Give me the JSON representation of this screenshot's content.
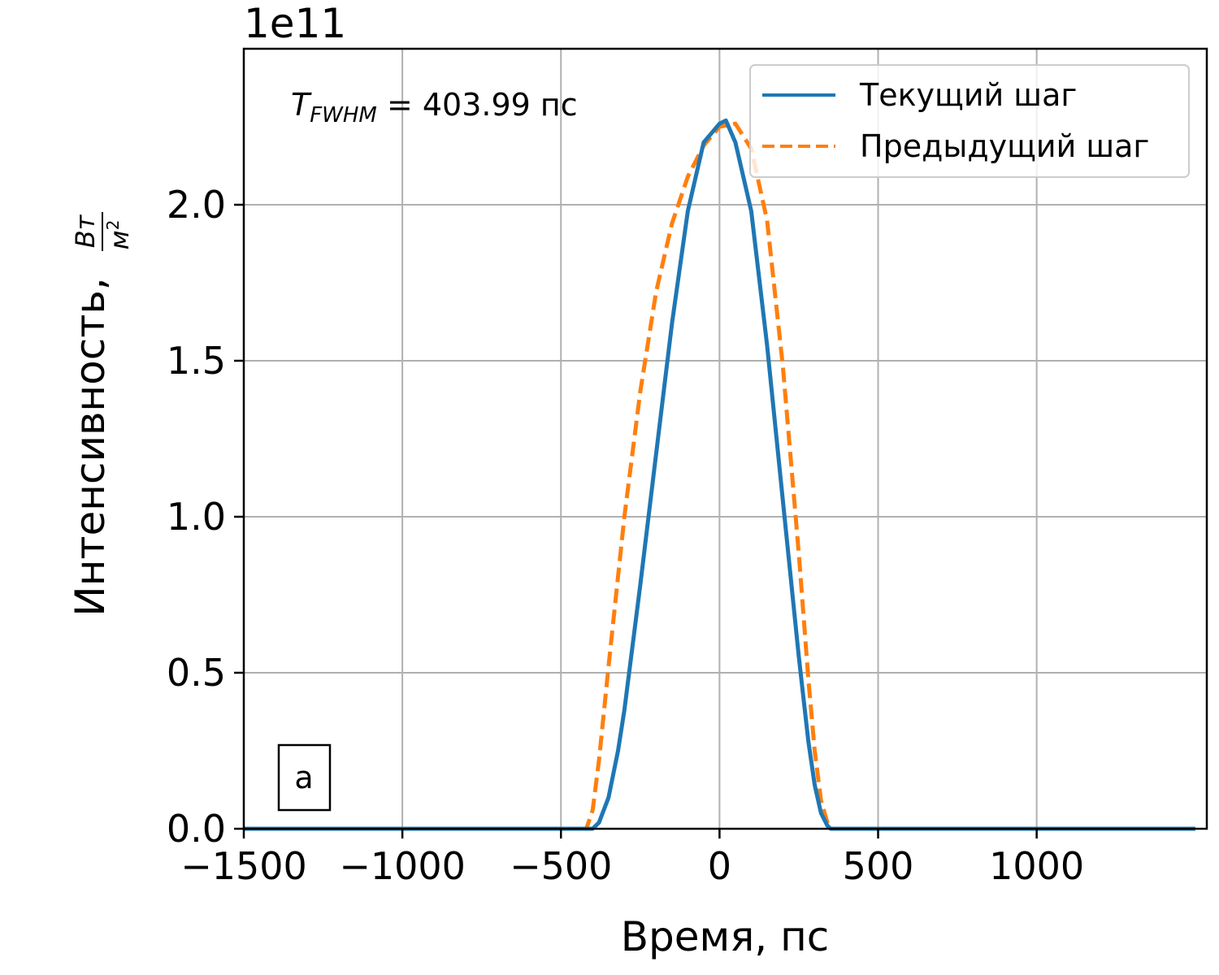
{
  "chart_data": {
    "type": "line",
    "title": "",
    "xlabel": "Время, пс",
    "ylabel": "Интенсивность, ",
    "ylabel_unit_num": "Вт",
    "ylabel_unit_den": "м",
    "ylabel_unit_den_exp": "2",
    "y_multiplier": "1e11",
    "xlim": [
      -1500,
      1500
    ],
    "ylim": [
      0,
      2.5
    ],
    "xticks": [
      -1500,
      -1000,
      -500,
      0,
      500,
      1000
    ],
    "xtick_labels": [
      "−1500",
      "−1000",
      "−500",
      "0",
      "500",
      "1000"
    ],
    "yticks": [
      0.0,
      0.5,
      1.0,
      1.5,
      2.0
    ],
    "ytick_labels": [
      "0.0",
      "0.5",
      "1.0",
      "1.5",
      "2.0"
    ],
    "grid": true,
    "legend_position": "top-right",
    "annotation": {
      "symbol": "T",
      "subscript": "FWHM",
      "text": " = 403.99 пс"
    },
    "panel_label": "а",
    "series": [
      {
        "name": "Текущий шаг",
        "color": "#1f77b4",
        "style": "solid",
        "x": [
          -1500,
          -600,
          -420,
          -400,
          -380,
          -350,
          -320,
          -300,
          -250,
          -200,
          -150,
          -100,
          -50,
          0,
          20,
          50,
          100,
          150,
          200,
          250,
          280,
          300,
          320,
          340,
          350,
          360,
          400,
          600,
          1500
        ],
        "y": [
          0,
          0,
          0,
          0.0,
          0.02,
          0.1,
          0.25,
          0.38,
          0.78,
          1.2,
          1.62,
          1.98,
          2.2,
          2.26,
          2.27,
          2.2,
          1.98,
          1.55,
          1.05,
          0.55,
          0.28,
          0.14,
          0.05,
          0.01,
          0.0,
          0,
          0,
          0,
          0
        ]
      },
      {
        "name": "Предыдущий шаг",
        "color": "#ff7f0e",
        "style": "dashed",
        "x": [
          -1500,
          -600,
          -430,
          -420,
          -400,
          -380,
          -350,
          -300,
          -250,
          -200,
          -150,
          -100,
          -50,
          0,
          50,
          100,
          150,
          200,
          250,
          280,
          300,
          320,
          340,
          350,
          360,
          400,
          600,
          1500
        ],
        "y": [
          0,
          0,
          0,
          0.0,
          0.06,
          0.22,
          0.52,
          1.0,
          1.4,
          1.72,
          1.94,
          2.09,
          2.19,
          2.25,
          2.26,
          2.18,
          1.95,
          1.48,
          0.88,
          0.48,
          0.25,
          0.09,
          0.02,
          0.0,
          0,
          0,
          0,
          0
        ]
      }
    ]
  }
}
